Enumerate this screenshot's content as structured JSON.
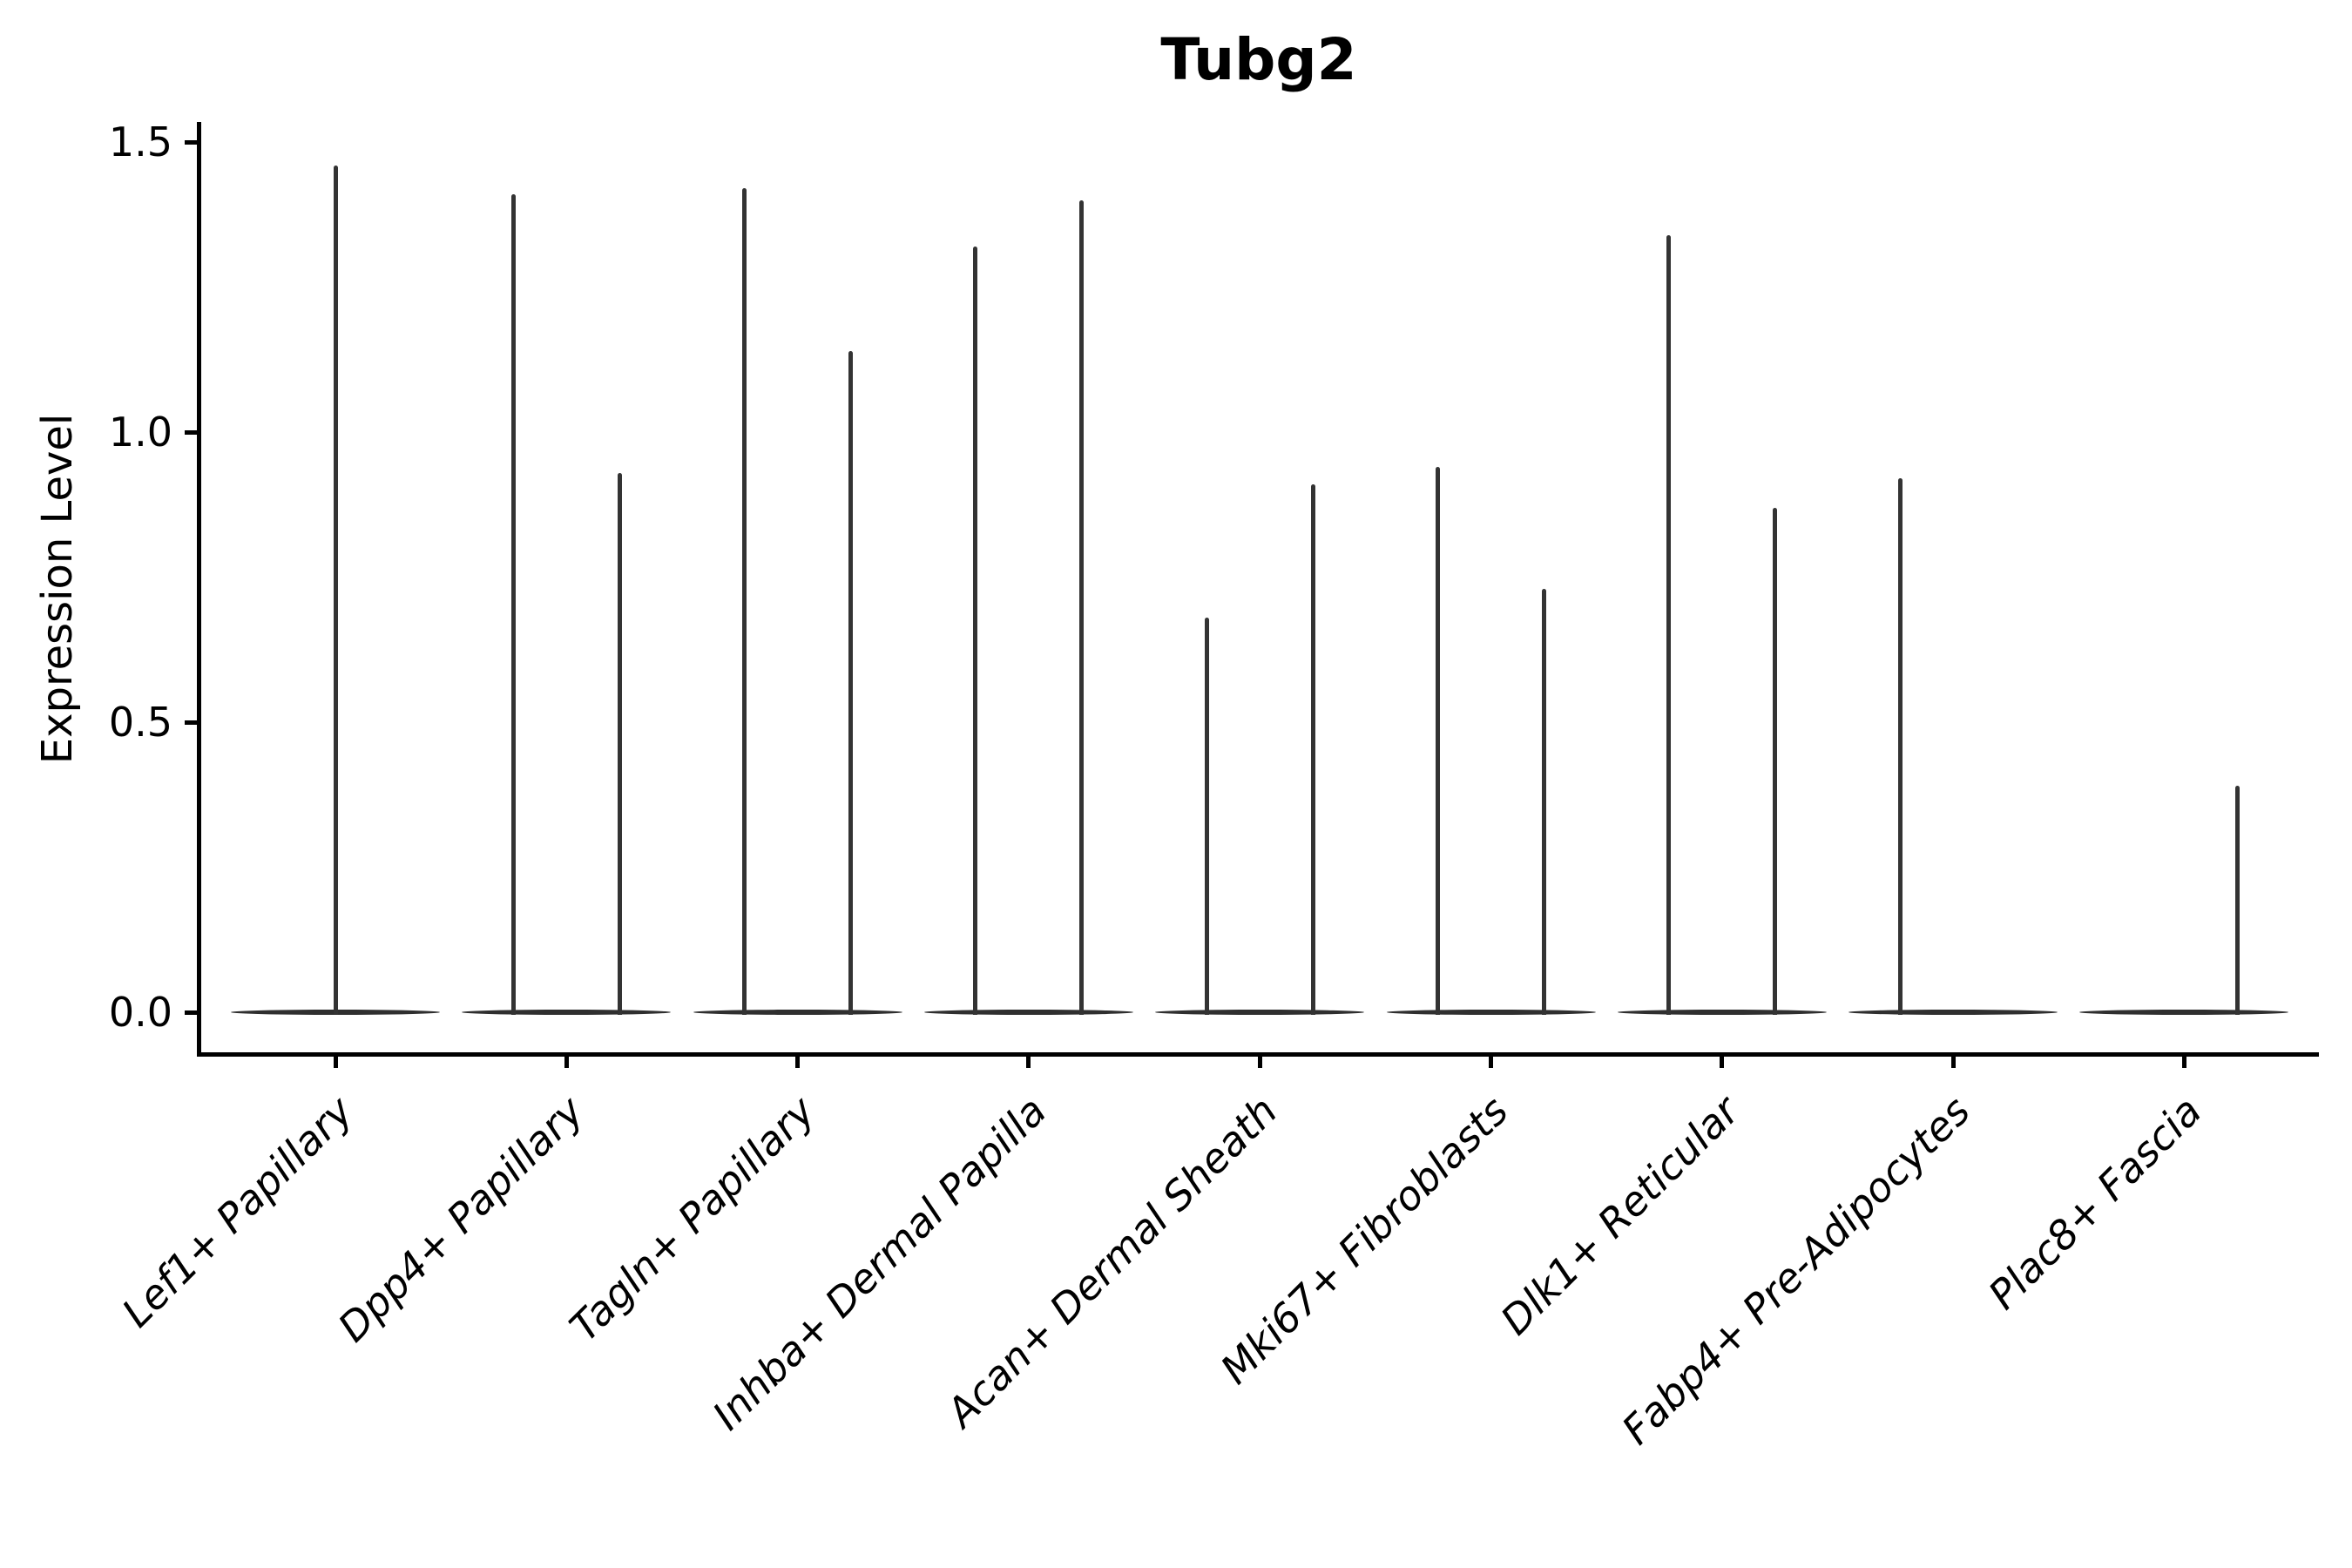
{
  "title": "Tubg2",
  "axes": {
    "y_label": "Expression Level",
    "y_ticks": [
      {
        "label": "0.0",
        "value": 0.0
      },
      {
        "label": "0.5",
        "value": 0.5
      },
      {
        "label": "1.0",
        "value": 1.0
      },
      {
        "label": "1.5",
        "value": 1.5
      }
    ]
  },
  "colors": {
    "spike": "#333333",
    "violin_base": "#2f2f2f",
    "axis": "#000000",
    "text": "#000000",
    "background": "#ffffff"
  },
  "chart_data": {
    "type": "violin",
    "title": "Tubg2",
    "xlabel": "",
    "ylabel": "Expression Level",
    "ylim": [
      0,
      1.5
    ],
    "y_ticks": [
      0.0,
      0.5,
      1.0,
      1.5
    ],
    "grid": false,
    "legend": false,
    "categories": [
      "Lef1+ Papillary",
      "Dpp4+ Papillary",
      "Tagln+ Papillary",
      "Inhba+ Dermal Papilla",
      "Acan+ Dermal Sheath",
      "Mki67+ Fibroblasts",
      "Dlk1+ Reticular",
      "Fabp4+ Pre-Adipocytes",
      "Plac8+ Fascia"
    ],
    "description": "Violin plot of Tubg2 expression per fibroblast cluster. Nearly all density is concentrated at 0 (flat violin bodies); thin spikes mark sparse high-expression cells. Most categories show two side-by-side violins (two groups); values are the approximate maximum expression reached by each spike.",
    "series": [
      {
        "category": "Lef1+ Papillary",
        "violins": [
          {
            "slot": "full",
            "max": 1.46
          }
        ]
      },
      {
        "category": "Dpp4+ Papillary",
        "violins": [
          {
            "slot": "left",
            "max": 1.41
          },
          {
            "slot": "right",
            "max": 0.93
          }
        ]
      },
      {
        "category": "Tagln+ Papillary",
        "violins": [
          {
            "slot": "left",
            "max": 1.42
          },
          {
            "slot": "right",
            "max": 1.14
          }
        ]
      },
      {
        "category": "Inhba+ Dermal Papilla",
        "violins": [
          {
            "slot": "left",
            "max": 1.32
          },
          {
            "slot": "right",
            "max": 1.4
          }
        ]
      },
      {
        "category": "Acan+ Dermal Sheath",
        "violins": [
          {
            "slot": "left",
            "max": 0.68
          },
          {
            "slot": "right",
            "max": 0.91
          }
        ]
      },
      {
        "category": "Mki67+ Fibroblasts",
        "violins": [
          {
            "slot": "left",
            "max": 0.94
          },
          {
            "slot": "right",
            "max": 0.73
          }
        ]
      },
      {
        "category": "Dlk1+ Reticular",
        "violins": [
          {
            "slot": "left",
            "max": 1.34
          },
          {
            "slot": "right",
            "max": 0.87
          }
        ]
      },
      {
        "category": "Fabp4+ Pre-Adipocytes",
        "violins": [
          {
            "slot": "left",
            "max": 0.92
          },
          {
            "slot": "right",
            "max": 0.0
          }
        ]
      },
      {
        "category": "Plac8+ Fascia",
        "violins": [
          {
            "slot": "left",
            "max": 0.0
          },
          {
            "slot": "right",
            "max": 0.39
          }
        ]
      }
    ]
  }
}
